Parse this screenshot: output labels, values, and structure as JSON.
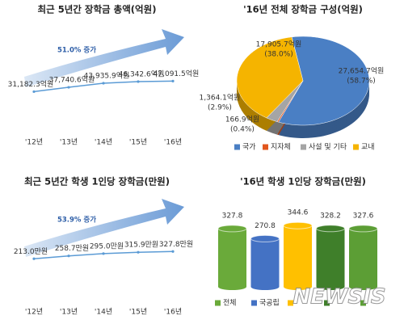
{
  "chart_data": [
    {
      "type": "line",
      "title": "최근 5년간 장학금 총액(억원)",
      "annotation": "51.0% 증가",
      "categories": [
        "'12년",
        "'13년",
        "'14년",
        "'15년",
        "'16년"
      ],
      "values": [
        31182.3,
        37740.6,
        43935.9,
        46342.6,
        47091.5
      ],
      "value_labels": [
        "31,182.3억원",
        "37,740.6억원",
        "43,935.9억원",
        "46,342.6억원",
        "47,091.5억원"
      ],
      "color": "#5b9bd5",
      "ylim": [
        0,
        200000
      ]
    },
    {
      "type": "pie",
      "title": "'16년 전체 장학금 구성(억원)",
      "categories": [
        "국가",
        "지자체",
        "사설 및 기타",
        "교내"
      ],
      "values": [
        27654.7,
        166.9,
        1364.1,
        17905.7
      ],
      "value_labels": [
        "27,654.7억원",
        "166.9억원",
        "1,364.1억원",
        "17,905.7억원"
      ],
      "percent_labels": [
        "(58.7%)",
        "(0.4%)",
        "(2.9%)",
        "(38.0%)"
      ],
      "colors": [
        "#4a7fc4",
        "#e2571e",
        "#a5a5a5",
        "#f5b400"
      ]
    },
    {
      "type": "line",
      "title": "최근 5년간 학생 1인당 장학금(만원)",
      "annotation": "53.9% 증가",
      "categories": [
        "'12년",
        "'13년",
        "'14년",
        "'15년",
        "'16년"
      ],
      "values": [
        213.0,
        258.7,
        295.0,
        315.9,
        327.8
      ],
      "value_labels": [
        "213.0만원",
        "258.7만원",
        "295.0만원",
        "315.9만원",
        "327.8만원"
      ],
      "color": "#5b9bd5",
      "ylim": [
        0,
        2000
      ]
    },
    {
      "type": "bar",
      "title": "'16년 학생 1인당 장학금(만원)",
      "categories": [
        "전체",
        "국공립",
        null,
        null,
        null
      ],
      "values": [
        327.8,
        270.8,
        344.6,
        328.2,
        327.6
      ],
      "colors": [
        "#6aaa3a",
        "#4472c4",
        "#ffc000",
        "#3f7f2a",
        "#5c9e35"
      ],
      "ylim": [
        0,
        400
      ],
      "watermark": "NEWSIS"
    }
  ]
}
